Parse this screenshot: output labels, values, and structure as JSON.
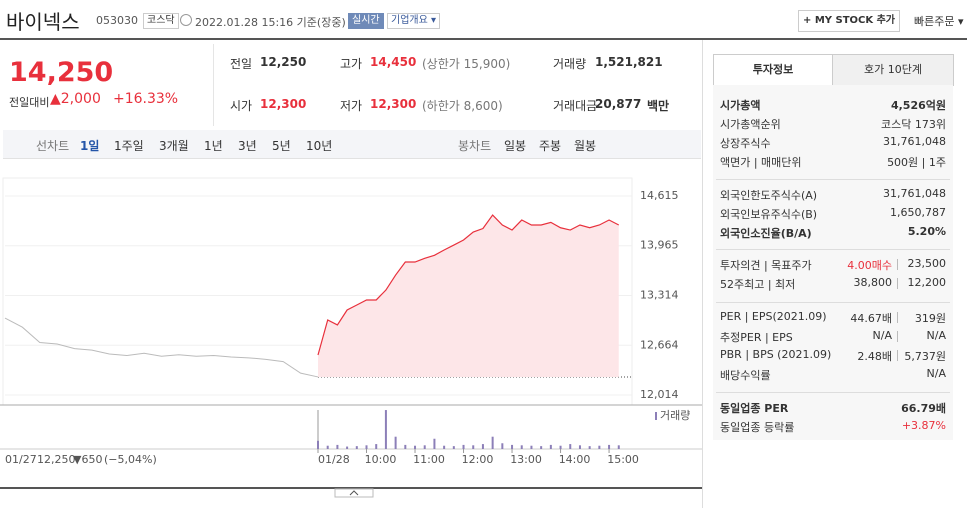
{
  "header": {
    "name": "바이넥스",
    "code": "053030",
    "market": "코스닥",
    "datetime": "2022.01.28 15:16 기준(장중)",
    "realtime": "실시간",
    "company_info": "기업개요",
    "mystock": "+ MY STOCK 추가",
    "quick_order": "빠른주문"
  },
  "price": {
    "current": "14,250",
    "change_label": "전일대비",
    "change": "▲2,000",
    "change_pct": "+16.33%"
  },
  "summary": [
    {
      "label": "전일",
      "value": "12,250"
    },
    {
      "label": "고가",
      "value": "14,450",
      "extra": "(상한가 15,900)"
    },
    {
      "label": "거래량",
      "value": "1,521,821"
    },
    {
      "label": "시가",
      "value": "12,300"
    },
    {
      "label": "저가",
      "value": "12,300",
      "extra": "(하한가 8,600)"
    },
    {
      "label": "거래대금",
      "value": "20,877",
      "extra": "백만"
    }
  ],
  "chart_tabs": {
    "line_label": "선차트",
    "line": [
      "1일",
      "1주일",
      "3개월",
      "1년",
      "3년",
      "5년",
      "10년"
    ],
    "candle_label": "봉차트",
    "candle": [
      "일봉",
      "주봉",
      "월봉"
    ]
  },
  "chart": {
    "type": "line",
    "ylim": [
      12014,
      14615
    ],
    "yticks": [
      {
        "value": 14615,
        "label": "14,615"
      },
      {
        "value": 13965,
        "label": "13,965"
      },
      {
        "value": 13314,
        "label": "13,314"
      },
      {
        "value": 12664,
        "label": "12,664"
      },
      {
        "value": 12014,
        "label": "12,014"
      }
    ],
    "baseline": 12250,
    "prev_day": {
      "color": "#bbbbbb",
      "values": [
        13020,
        12900,
        12700,
        12680,
        12620,
        12600,
        12550,
        12530,
        12560,
        12520,
        12540,
        12520,
        12530,
        12510,
        12500,
        12480,
        12450,
        12300,
        12250
      ]
    },
    "today": {
      "color": "#e8303c",
      "fill": "#fde6e8",
      "xlim": [
        0,
        376
      ],
      "x": [
        0,
        12,
        24,
        36,
        48,
        60,
        72,
        84,
        96,
        108,
        120,
        132,
        144,
        156,
        168,
        180,
        192,
        204,
        216,
        228,
        240,
        252,
        264,
        276,
        288,
        300,
        312,
        324,
        336,
        348,
        360,
        372
      ],
      "values": [
        12537,
        12994,
        12930,
        13125,
        13190,
        13256,
        13256,
        13386,
        13582,
        13752,
        13752,
        13800,
        13840,
        13909,
        13974,
        14040,
        14144,
        14190,
        14366,
        14236,
        14170,
        14301,
        14236,
        14236,
        14270,
        14200,
        14170,
        14236,
        14200,
        14236,
        14301,
        14236
      ],
      "volume": [
        20,
        8,
        10,
        6,
        7,
        9,
        12,
        95,
        30,
        10,
        8,
        9,
        25,
        8,
        7,
        10,
        9,
        12,
        30,
        14,
        10,
        9,
        8,
        7,
        10,
        8,
        12,
        9,
        7,
        8,
        10,
        9
      ],
      "volume_color": "#8c7fb8"
    },
    "vlim": [
      0,
      100
    ],
    "volume_label": "거래량",
    "xticks": [
      {
        "value": 0,
        "label": "01/28"
      },
      {
        "value": 60,
        "label": "10:00"
      },
      {
        "value": 120,
        "label": "11:00"
      },
      {
        "value": 180,
        "label": "12:00"
      },
      {
        "value": 240,
        "label": "13:00"
      },
      {
        "value": 300,
        "label": "14:00"
      },
      {
        "value": 360,
        "label": "15:00"
      }
    ],
    "prev_info": {
      "date": "01/27",
      "close": "12,250",
      "change": "▼650",
      "pct": "(−5,04%)"
    }
  },
  "info_tabs": [
    "투자정보",
    "호가 10단계"
  ],
  "info": [
    [
      {
        "label": "시가총액",
        "value": "4,526억원",
        "bold": true
      },
      {
        "label": "시가총액순위",
        "value": "코스닥 173위"
      },
      {
        "label": "상장주식수",
        "value": "31,761,048"
      },
      {
        "label": "액면가 | 매매단위",
        "value": "500원 | 1주"
      }
    ],
    [
      {
        "label": "외국인한도주식수(A)",
        "value": "31,761,048"
      },
      {
        "label": "외국인보유주식수(B)",
        "value": "1,650,787"
      },
      {
        "label": "외국인소진율(B/A)",
        "value": "5.20%",
        "bold": true
      }
    ],
    [
      {
        "label": "투자의견 | 목표주가",
        "value": "4.00매수",
        "value2": "23,500"
      },
      {
        "label": "52주최고 | 최저",
        "value": "38,800",
        "value2": "12,200"
      }
    ],
    [
      {
        "label": "PER | EPS(2021.09)",
        "value": "44.67배",
        "value2": "319원"
      },
      {
        "label": "추정PER | EPS",
        "value": "N/A",
        "value2": "N/A"
      },
      {
        "label": "PBR | BPS (2021.09)",
        "value": "2.48배",
        "value2": "5,737원"
      },
      {
        "label": "배당수익률",
        "value": "N/A"
      }
    ],
    [
      {
        "label": "동일업종 PER",
        "value": "66.79배",
        "bold": true
      },
      {
        "label": "동일업종 등락률",
        "value": "+3.87%"
      }
    ]
  ]
}
